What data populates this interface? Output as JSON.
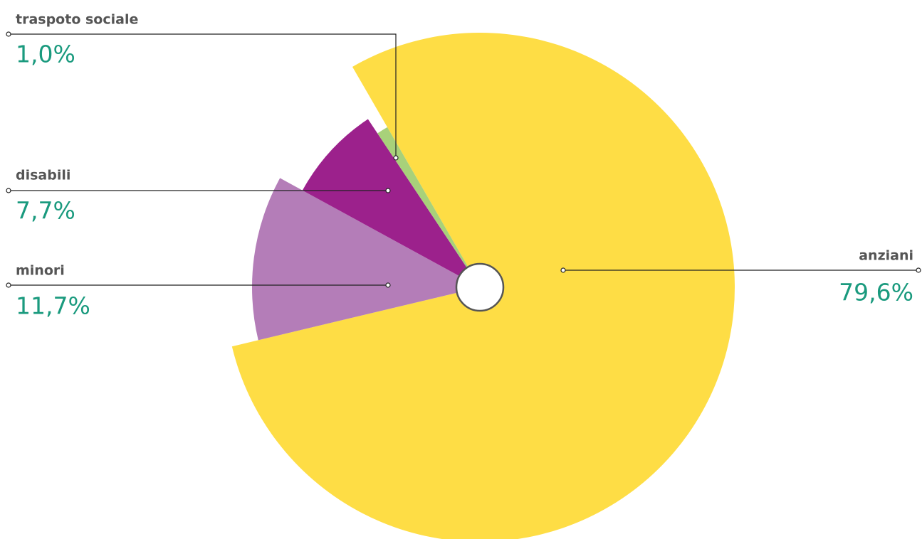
{
  "chart_data": {
    "type": "pie",
    "categories": [
      "anziani",
      "minori",
      "disabili",
      "traspoto sociale"
    ],
    "values": [
      79.6,
      11.7,
      7.7,
      1.0
    ],
    "value_labels": [
      "79,6%",
      "11,7%",
      "7,7%",
      "1,0%"
    ],
    "colors": [
      "#fedd45",
      "#b47db8",
      "#9c218c",
      "#a8d17a"
    ]
  }
}
